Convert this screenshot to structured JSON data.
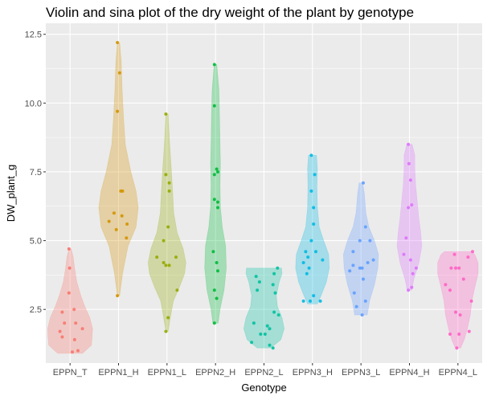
{
  "chart_data": {
    "type": "violin",
    "title": "Violin and sina plot of the dry weight of the plant by genotype",
    "xlabel": "Genotype",
    "ylabel": "DW_plant_g",
    "ylim": [
      0.55,
      12.9
    ],
    "yticks": [
      2.5,
      5.0,
      7.5,
      10.0,
      12.5
    ],
    "ytick_labels": [
      "2.5",
      "5.0",
      "7.5",
      "10.0",
      "12.5"
    ],
    "grid": true,
    "legend": "none",
    "categories": [
      "EPPN_T",
      "EPPN1_H",
      "EPPN1_L",
      "EPPN2_H",
      "EPPN2_L",
      "EPPN3_H",
      "EPPN3_L",
      "EPPN4_H",
      "EPPN4_L"
    ],
    "colors": [
      "#F8766D",
      "#D39200",
      "#93AA00",
      "#00BA38",
      "#00C19F",
      "#00B9E3",
      "#619CFF",
      "#DB72FB",
      "#FF61C3"
    ],
    "series": [
      {
        "violin": [
          [
            0.9,
            0.55
          ],
          [
            1.2,
            0.95
          ],
          [
            1.5,
            0.98
          ],
          [
            1.8,
            1.0
          ],
          [
            2.2,
            0.88
          ],
          [
            2.6,
            0.66
          ],
          [
            3.0,
            0.48
          ],
          [
            3.5,
            0.3
          ],
          [
            4.0,
            0.2
          ],
          [
            4.4,
            0.14
          ],
          [
            4.7,
            0.05
          ]
        ],
        "points": [
          [
            -0.05,
            4.7
          ],
          [
            -0.02,
            4.0
          ],
          [
            -0.05,
            3.1
          ],
          [
            -0.35,
            2.4
          ],
          [
            0.18,
            2.5
          ],
          [
            -0.25,
            2.0
          ],
          [
            0.25,
            2.0
          ],
          [
            -0.45,
            1.7
          ],
          [
            0.55,
            1.8
          ],
          [
            -0.35,
            1.5
          ],
          [
            0.2,
            1.4
          ],
          [
            0.35,
            1.0
          ],
          [
            0.1,
            0.95
          ]
        ]
      },
      {
        "violin": [
          [
            3.0,
            0.05
          ],
          [
            3.8,
            0.18
          ],
          [
            4.8,
            0.42
          ],
          [
            5.5,
            0.78
          ],
          [
            6.2,
            0.88
          ],
          [
            6.8,
            0.78
          ],
          [
            7.5,
            0.55
          ],
          [
            8.5,
            0.3
          ],
          [
            9.5,
            0.22
          ],
          [
            10.5,
            0.16
          ],
          [
            11.5,
            0.12
          ],
          [
            12.2,
            0.05
          ]
        ],
        "points": [
          [
            -0.05,
            12.2
          ],
          [
            0.05,
            11.1
          ],
          [
            -0.05,
            9.7
          ],
          [
            0.1,
            6.8
          ],
          [
            0.18,
            6.8
          ],
          [
            -0.2,
            6.0
          ],
          [
            0.15,
            5.9
          ],
          [
            -0.42,
            5.7
          ],
          [
            0.38,
            5.6
          ],
          [
            -0.1,
            5.4
          ],
          [
            0.35,
            5.1
          ],
          [
            -0.05,
            3.0
          ]
        ]
      },
      {
        "violin": [
          [
            1.7,
            0.05
          ],
          [
            2.2,
            0.15
          ],
          [
            2.8,
            0.28
          ],
          [
            3.3,
            0.55
          ],
          [
            3.8,
            0.78
          ],
          [
            4.2,
            0.84
          ],
          [
            4.7,
            0.72
          ],
          [
            5.3,
            0.45
          ],
          [
            6.0,
            0.3
          ],
          [
            6.8,
            0.25
          ],
          [
            7.5,
            0.2
          ],
          [
            8.5,
            0.12
          ],
          [
            9.6,
            0.05
          ]
        ],
        "points": [
          [
            -0.05,
            9.6
          ],
          [
            -0.05,
            7.4
          ],
          [
            0.1,
            7.1
          ],
          [
            0.1,
            6.8
          ],
          [
            0.05,
            5.5
          ],
          [
            -0.15,
            5.0
          ],
          [
            -0.45,
            4.4
          ],
          [
            0.4,
            4.4
          ],
          [
            -0.15,
            4.2
          ],
          [
            -0.05,
            4.1
          ],
          [
            0.1,
            4.1
          ],
          [
            0.45,
            3.2
          ],
          [
            0.05,
            2.2
          ],
          [
            -0.05,
            1.7
          ]
        ]
      },
      {
        "violin": [
          [
            2.0,
            0.12
          ],
          [
            2.5,
            0.2
          ],
          [
            3.2,
            0.38
          ],
          [
            4.0,
            0.48
          ],
          [
            4.8,
            0.45
          ],
          [
            5.5,
            0.3
          ],
          [
            6.2,
            0.22
          ],
          [
            7.0,
            0.2
          ],
          [
            7.8,
            0.22
          ],
          [
            8.5,
            0.2
          ],
          [
            9.5,
            0.18
          ],
          [
            10.5,
            0.15
          ],
          [
            11.4,
            0.06
          ]
        ],
        "points": [
          [
            -0.05,
            11.4
          ],
          [
            -0.05,
            9.9
          ],
          [
            0.05,
            7.6
          ],
          [
            0.1,
            7.5
          ],
          [
            -0.05,
            7.4
          ],
          [
            -0.05,
            6.5
          ],
          [
            0.1,
            6.4
          ],
          [
            0.1,
            6.2
          ],
          [
            -0.1,
            4.6
          ],
          [
            0.05,
            4.2
          ],
          [
            0.1,
            3.9
          ],
          [
            -0.05,
            3.2
          ],
          [
            0.05,
            2.9
          ],
          [
            -0.05,
            2.0
          ]
        ]
      },
      {
        "violin": [
          [
            1.1,
            0.3
          ],
          [
            1.4,
            0.75
          ],
          [
            1.8,
            0.9
          ],
          [
            2.2,
            0.8
          ],
          [
            2.6,
            0.6
          ],
          [
            3.0,
            0.55
          ],
          [
            3.5,
            0.68
          ],
          [
            3.8,
            0.8
          ],
          [
            4.0,
            0.78
          ]
        ],
        "points": [
          [
            0.6,
            4.0
          ],
          [
            0.45,
            3.8
          ],
          [
            -0.35,
            3.7
          ],
          [
            -0.2,
            3.5
          ],
          [
            0.4,
            3.4
          ],
          [
            -0.3,
            3.2
          ],
          [
            0.5,
            3.1
          ],
          [
            0.45,
            2.4
          ],
          [
            0.65,
            2.3
          ],
          [
            -0.45,
            2.0
          ],
          [
            0.15,
            1.9
          ],
          [
            0.25,
            1.8
          ],
          [
            0.05,
            1.6
          ],
          [
            -0.15,
            1.6
          ],
          [
            -0.55,
            1.3
          ],
          [
            0.25,
            1.2
          ],
          [
            0.4,
            1.1
          ]
        ]
      },
      {
        "violin": [
          [
            2.7,
            0.22
          ],
          [
            3.0,
            0.38
          ],
          [
            3.5,
            0.62
          ],
          [
            4.0,
            0.75
          ],
          [
            4.5,
            0.72
          ],
          [
            5.0,
            0.5
          ],
          [
            5.5,
            0.3
          ],
          [
            6.2,
            0.22
          ],
          [
            7.0,
            0.2
          ],
          [
            7.6,
            0.22
          ],
          [
            8.1,
            0.18
          ]
        ],
        "points": [
          [
            -0.05,
            8.1
          ],
          [
            0.1,
            7.4
          ],
          [
            -0.05,
            6.8
          ],
          [
            0.05,
            6.2
          ],
          [
            0.05,
            5.6
          ],
          [
            -0.05,
            5.0
          ],
          [
            -0.3,
            4.6
          ],
          [
            0.15,
            4.6
          ],
          [
            -0.2,
            4.4
          ],
          [
            0.45,
            4.3
          ],
          [
            -0.4,
            4.2
          ],
          [
            -0.15,
            4.0
          ],
          [
            -0.25,
            3.8
          ],
          [
            0.05,
            3.0
          ],
          [
            -0.1,
            2.8
          ],
          [
            -0.4,
            2.8
          ],
          [
            0.35,
            2.8
          ]
        ]
      },
      {
        "violin": [
          [
            2.3,
            0.28
          ],
          [
            2.8,
            0.38
          ],
          [
            3.4,
            0.6
          ],
          [
            4.0,
            0.75
          ],
          [
            4.5,
            0.78
          ],
          [
            5.0,
            0.6
          ],
          [
            5.5,
            0.35
          ],
          [
            6.0,
            0.22
          ],
          [
            6.7,
            0.15
          ],
          [
            7.1,
            0.08
          ]
        ],
        "points": [
          [
            0.1,
            7.1
          ],
          [
            0.2,
            5.5
          ],
          [
            -0.05,
            5.0
          ],
          [
            0.4,
            5.0
          ],
          [
            -0.35,
            4.6
          ],
          [
            0.55,
            4.3
          ],
          [
            0.3,
            4.2
          ],
          [
            -0.35,
            4.1
          ],
          [
            -0.05,
            4.0
          ],
          [
            0.05,
            4.0
          ],
          [
            -0.5,
            3.9
          ],
          [
            0.1,
            3.6
          ],
          [
            -0.3,
            3.1
          ],
          [
            0.2,
            2.8
          ],
          [
            -0.2,
            2.6
          ],
          [
            0.05,
            2.3
          ]
        ]
      },
      {
        "violin": [
          [
            3.2,
            0.1
          ],
          [
            3.6,
            0.2
          ],
          [
            4.2,
            0.42
          ],
          [
            4.8,
            0.55
          ],
          [
            5.3,
            0.5
          ],
          [
            5.8,
            0.42
          ],
          [
            6.4,
            0.35
          ],
          [
            7.0,
            0.28
          ],
          [
            7.6,
            0.24
          ],
          [
            8.1,
            0.24
          ],
          [
            8.5,
            0.12
          ]
        ],
        "points": [
          [
            -0.05,
            8.5
          ],
          [
            -0.02,
            7.8
          ],
          [
            0.05,
            7.2
          ],
          [
            0.1,
            6.3
          ],
          [
            -0.05,
            6.2
          ],
          [
            -0.15,
            5.1
          ],
          [
            -0.25,
            4.5
          ],
          [
            0.05,
            4.3
          ],
          [
            0.3,
            4.0
          ],
          [
            0.15,
            3.8
          ],
          [
            0.1,
            3.3
          ],
          [
            -0.05,
            3.2
          ]
        ]
      },
      {
        "violin": [
          [
            1.1,
            0.12
          ],
          [
            1.4,
            0.28
          ],
          [
            1.8,
            0.42
          ],
          [
            2.3,
            0.55
          ],
          [
            2.8,
            0.62
          ],
          [
            3.3,
            0.75
          ],
          [
            3.8,
            0.9
          ],
          [
            4.2,
            0.9
          ],
          [
            4.5,
            0.75
          ],
          [
            4.6,
            0.6
          ]
        ],
        "points": [
          [
            0.65,
            4.6
          ],
          [
            -0.15,
            4.5
          ],
          [
            0.45,
            4.4
          ],
          [
            -0.3,
            4.0
          ],
          [
            -0.1,
            4.0
          ],
          [
            0.05,
            4.0
          ],
          [
            0.25,
            3.6
          ],
          [
            -0.55,
            3.4
          ],
          [
            -0.35,
            3.2
          ],
          [
            0.6,
            2.8
          ],
          [
            -0.1,
            2.4
          ],
          [
            0.1,
            2.3
          ],
          [
            -0.35,
            1.6
          ],
          [
            0.05,
            1.6
          ],
          [
            0.5,
            1.7
          ],
          [
            -0.05,
            1.1
          ]
        ]
      }
    ]
  }
}
